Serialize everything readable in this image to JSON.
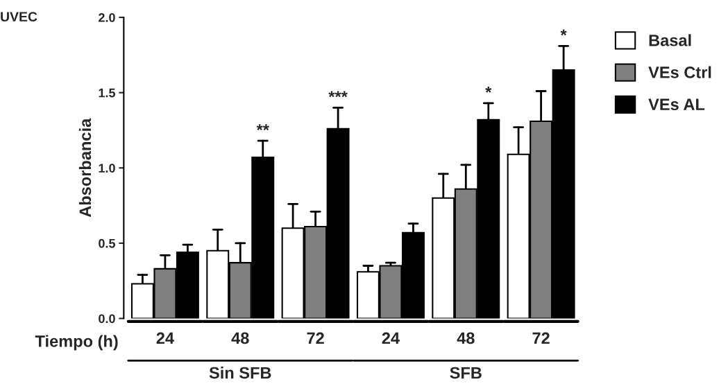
{
  "chart_data": {
    "type": "bar",
    "title": "UVEC",
    "ylabel": "Absorbancia",
    "xlabel": "Tiempo (h)",
    "categories": [
      "24",
      "48",
      "72",
      "24",
      "48",
      "72"
    ],
    "series": [
      {
        "name": "Basal",
        "color": "#ffffff",
        "values": [
          0.23,
          0.45,
          0.6,
          0.31,
          0.8,
          1.09
        ],
        "errors": [
          [
            0.23,
            0.29
          ],
          [
            0.45,
            0.59
          ],
          [
            0.6,
            0.76
          ],
          [
            0.31,
            0.35
          ],
          [
            0.8,
            0.96
          ],
          [
            1.09,
            1.27
          ]
        ]
      },
      {
        "name": "VEs Ctrl",
        "color": "#808080",
        "values": [
          0.33,
          0.37,
          0.61,
          0.35,
          0.86,
          1.31
        ],
        "errors": [
          [
            0.33,
            0.42
          ],
          [
            0.37,
            0.5
          ],
          [
            0.61,
            0.71
          ],
          [
            0.35,
            0.37
          ],
          [
            0.86,
            1.02
          ],
          [
            1.31,
            1.51
          ]
        ]
      },
      {
        "name": "VEs AL",
        "color": "#000000",
        "values": [
          0.44,
          1.07,
          1.26,
          0.57,
          1.32,
          1.65
        ],
        "errors": [
          [
            0.44,
            0.49
          ],
          [
            1.07,
            1.18
          ],
          [
            1.26,
            1.4
          ],
          [
            0.57,
            0.63
          ],
          [
            1.32,
            1.43
          ],
          [
            1.65,
            1.81
          ]
        ],
        "value_labels": [
          null,
          "**",
          "***",
          null,
          "*",
          "*"
        ]
      }
    ],
    "ylim": [
      0,
      2
    ],
    "yticks": [
      {
        "value": 0,
        "label": "0.0"
      },
      {
        "value": 0.5,
        "label": "0.5"
      },
      {
        "value": 1,
        "label": "1.0"
      },
      {
        "value": 1.5,
        "label": "1.5"
      },
      {
        "value": 2,
        "label": "2.0"
      }
    ],
    "annotations": [
      "Sin SFB",
      "SFB"
    ],
    "legend": "right",
    "grid": false
  }
}
